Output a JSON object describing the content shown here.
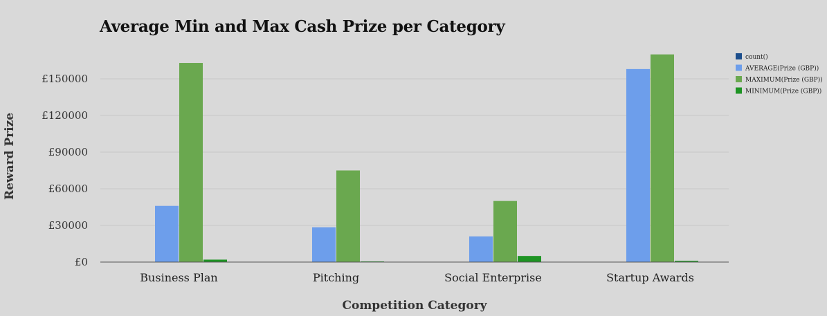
{
  "chart_data": {
    "type": "bar",
    "title": "Average Min and Max Cash Prize per Category",
    "xlabel": "Competition Category",
    "ylabel": "Reward Prize",
    "categories": [
      "Business Plan",
      "Pitching",
      "Social Enterprise",
      "Startup Awards"
    ],
    "series": [
      {
        "name": "count()",
        "color": "#1c4e8c",
        "values": [
          0,
          0,
          0,
          0
        ]
      },
      {
        "name": "AVERAGE(Prize (GBP))",
        "color": "#6d9eeb",
        "values": [
          46000,
          28500,
          21000,
          158000
        ]
      },
      {
        "name": "MAXIMUM(Prize (GBP))",
        "color": "#6aa84f",
        "values": [
          163000,
          75000,
          50000,
          170000
        ]
      },
      {
        "name": "MINIMUM(Prize (GBP))",
        "color": "#1e9424",
        "values": [
          2000,
          500,
          5000,
          1000
        ]
      }
    ],
    "yticks": [
      0,
      30000,
      60000,
      90000,
      120000,
      150000
    ],
    "ytick_labels": [
      "£0",
      "£30000",
      "£60000",
      "£90000",
      "£120000",
      "£150000"
    ],
    "ylim": [
      0,
      170000
    ],
    "grid": true,
    "legend_position": "top-right"
  }
}
